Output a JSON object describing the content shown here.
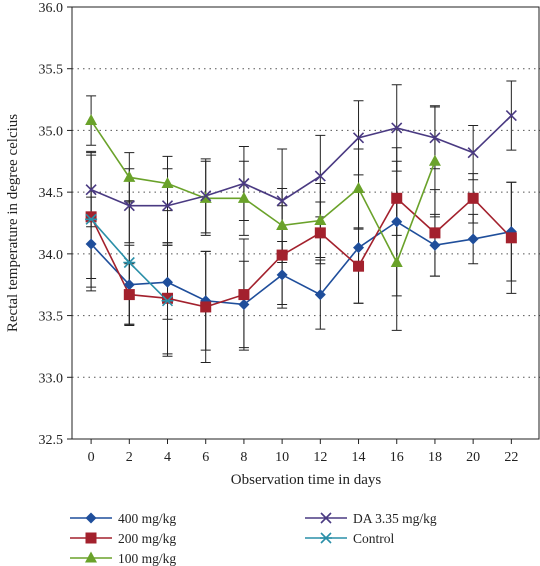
{
  "chart_data": {
    "type": "line",
    "title": "",
    "xlabel": "Observation time in days",
    "ylabel": "Rectal temperature in degree celcius",
    "x": [
      0,
      2,
      4,
      6,
      8,
      10,
      12,
      14,
      16,
      18,
      20,
      22
    ],
    "x_ticks": [
      "0",
      "2",
      "4",
      "6",
      "8",
      "10",
      "12",
      "14",
      "16",
      "18",
      "20",
      "22"
    ],
    "ylim": [
      32.5,
      36.0
    ],
    "y_ticks": [
      "32.5",
      "33.0",
      "33.5",
      "34.0",
      "34.5",
      "35.0",
      "35.5",
      "36.0"
    ],
    "grid": "horizontal dotted",
    "legend_position": "bottom",
    "series": [
      {
        "name": "400 mg/kg",
        "color": "#1f4e9b",
        "marker": "diamond",
        "x": [
          0,
          2,
          4,
          6,
          8,
          10,
          12,
          14,
          16,
          18,
          20,
          22
        ],
        "values": [
          34.08,
          33.75,
          33.77,
          33.62,
          33.59,
          33.83,
          33.67,
          34.05,
          34.26,
          34.07,
          34.12,
          34.18
        ],
        "errors": [
          0.38,
          0.32,
          0.3,
          0.4,
          0.35,
          0.27,
          0.28,
          0.45,
          0.6,
          0.25,
          0.2,
          0.4
        ]
      },
      {
        "name": "200 mg/kg",
        "color": "#a3212d",
        "marker": "square",
        "x": [
          0,
          2,
          4,
          6,
          8,
          10,
          12,
          14,
          16,
          18,
          20,
          22
        ],
        "values": [
          34.3,
          33.67,
          33.64,
          33.57,
          33.67,
          33.99,
          34.17,
          33.9,
          34.45,
          34.17,
          34.45,
          34.13
        ],
        "errors": [
          0.5,
          0.25,
          0.45,
          0.45,
          0.45,
          0.4,
          0.25,
          0.3,
          0.3,
          0.35,
          0.2,
          0.45
        ]
      },
      {
        "name": "100 mg/kg",
        "color": "#6aa22a",
        "marker": "triangle",
        "x": [
          0,
          2,
          4,
          6,
          8,
          10,
          12,
          14,
          16,
          18
        ],
        "values": [
          35.08,
          34.62,
          34.57,
          34.45,
          34.45,
          34.23,
          34.27,
          34.53,
          33.93,
          34.75
        ],
        "errors": [
          0.2,
          0.2,
          0.22,
          0.3,
          0.3,
          0.3,
          0.3,
          0.32,
          0.55,
          0.45
        ]
      },
      {
        "name": "DA 3.35 mg/kg",
        "color": "#4a3a82",
        "marker": "x",
        "x": [
          0,
          2,
          4,
          6,
          8,
          10,
          12,
          14,
          16,
          18,
          20,
          22
        ],
        "values": [
          34.52,
          34.39,
          34.39,
          34.47,
          34.57,
          34.43,
          34.63,
          34.94,
          35.02,
          34.94,
          34.82,
          35.12
        ],
        "errors": [
          0.3,
          0.3,
          0.3,
          0.3,
          0.3,
          0.42,
          0.33,
          0.3,
          0.35,
          0.25,
          0.22,
          0.28
        ]
      },
      {
        "name": "Control",
        "color": "#2a8fa8",
        "marker": "asterisk",
        "x": [
          0,
          2,
          4
        ],
        "values": [
          34.28,
          33.93,
          33.62
        ],
        "errors": [
          0.55,
          0.5,
          0.45
        ]
      }
    ]
  }
}
